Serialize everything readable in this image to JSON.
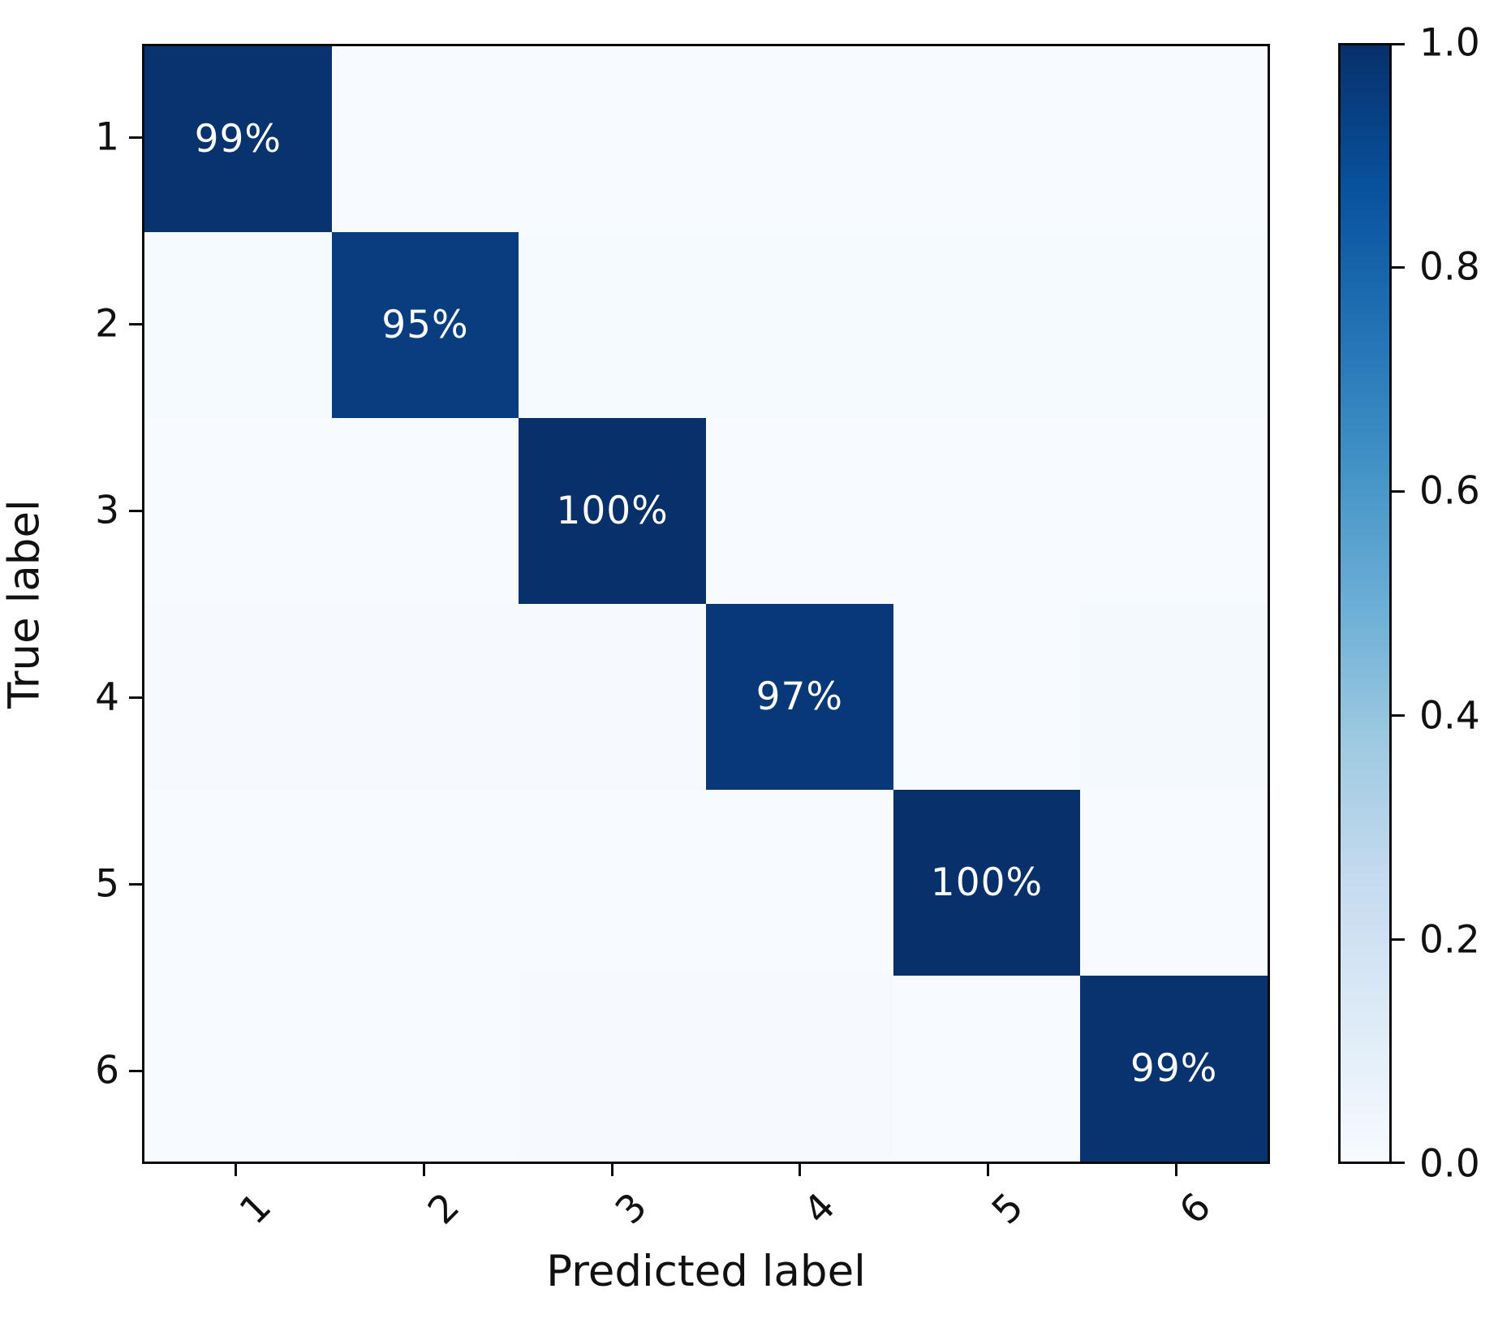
{
  "figure": {
    "background": "#ffffff",
    "text_color": "#111111"
  },
  "chart_data": {
    "type": "heatmap",
    "title": "",
    "xlabel": "Predicted label",
    "ylabel": "True label",
    "x_tick_labels": [
      "1",
      "2",
      "3",
      "4",
      "5",
      "6"
    ],
    "y_tick_labels": [
      "1",
      "2",
      "3",
      "4",
      "5",
      "6"
    ],
    "matrix": [
      [
        0.99,
        0.002,
        0.002,
        0.002,
        0.002,
        0.002
      ],
      [
        0.01,
        0.95,
        0.01,
        0.01,
        0.01,
        0.01
      ],
      [
        0.001,
        0.001,
        1.0,
        0.001,
        0.001,
        0.001
      ],
      [
        0.007,
        0.007,
        0.007,
        0.97,
        0.002,
        0.015
      ],
      [
        0.001,
        0.001,
        0.001,
        0.001,
        1.0,
        0.001
      ],
      [
        0.001,
        0.001,
        0.006,
        0.004,
        0.001,
        0.99
      ]
    ],
    "cell_text_labels": [
      {
        "row": 0,
        "col": 0,
        "text": "99%"
      },
      {
        "row": 1,
        "col": 1,
        "text": "95%"
      },
      {
        "row": 2,
        "col": 2,
        "text": "100%"
      },
      {
        "row": 3,
        "col": 3,
        "text": "97%"
      },
      {
        "row": 4,
        "col": 4,
        "text": "100%"
      },
      {
        "row": 5,
        "col": 5,
        "text": "99%"
      }
    ],
    "value_range": [
      0.0,
      1.0
    ],
    "grid": false,
    "colormap_name": "Blues",
    "colormap_stops": [
      {
        "v": 0.0,
        "color": "#f7fbff"
      },
      {
        "v": 0.125,
        "color": "#deebf7"
      },
      {
        "v": 0.25,
        "color": "#c6dbef"
      },
      {
        "v": 0.375,
        "color": "#9ecae1"
      },
      {
        "v": 0.5,
        "color": "#6baed6"
      },
      {
        "v": 0.625,
        "color": "#4292c6"
      },
      {
        "v": 0.75,
        "color": "#2171b5"
      },
      {
        "v": 0.875,
        "color": "#08519c"
      },
      {
        "v": 1.0,
        "color": "#08306b"
      }
    ],
    "min_color": "#f7fbff",
    "max_color": "#08306b",
    "cell_text_color": "#ffffff",
    "colorbar": {
      "position": "right",
      "tick_labels": [
        "1.0",
        "0.8",
        "0.6",
        "0.4",
        "0.2",
        "0.0"
      ],
      "tick_values": [
        1.0,
        0.8,
        0.6,
        0.4,
        0.2,
        0.0
      ]
    }
  }
}
